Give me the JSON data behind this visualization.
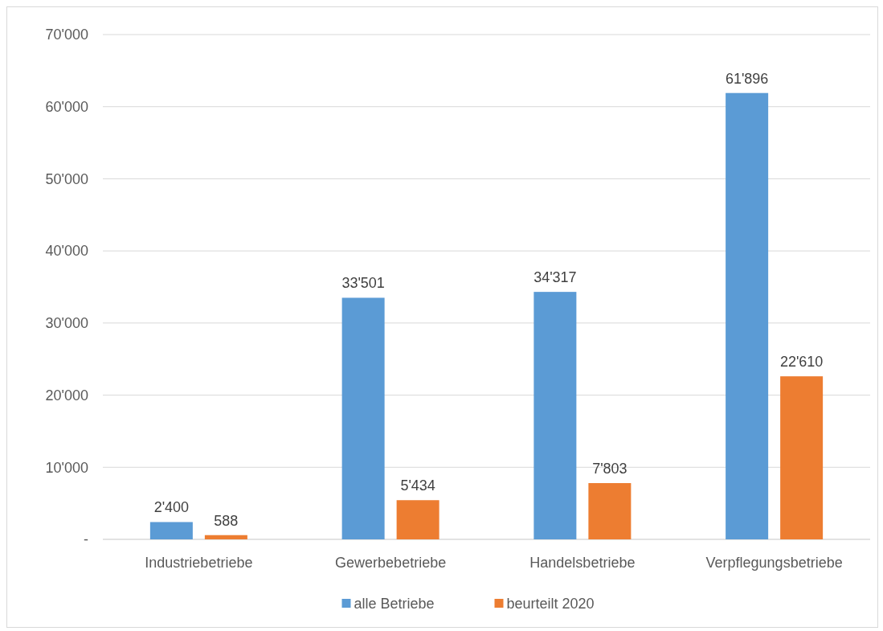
{
  "chart_data": {
    "type": "bar",
    "categories": [
      "Industriebetriebe",
      "Gewerbebetriebe",
      "Handelsbetriebe",
      "Verpflegungsbetriebe"
    ],
    "series": [
      {
        "name": "alle Betriebe",
        "color": "#5b9bd5",
        "values": [
          2400,
          33501,
          34317,
          61896
        ],
        "value_labels": [
          "2'400",
          "33'501",
          "34'317",
          "61'896"
        ]
      },
      {
        "name": "beurteilt 2020",
        "color": "#ed7d31",
        "values": [
          588,
          5434,
          7803,
          22610
        ],
        "value_labels": [
          "588",
          "5'434",
          "7'803",
          "22'610"
        ]
      }
    ],
    "ylim": [
      0,
      70000
    ],
    "yticks": [
      {
        "value": 0,
        "label": "-"
      },
      {
        "value": 10000,
        "label": "10'000"
      },
      {
        "value": 20000,
        "label": "20'000"
      },
      {
        "value": 30000,
        "label": "30'000"
      },
      {
        "value": 40000,
        "label": "40'000"
      },
      {
        "value": 50000,
        "label": "50'000"
      },
      {
        "value": 60000,
        "label": "60'000"
      },
      {
        "value": 70000,
        "label": "70'000"
      }
    ],
    "grid": "y",
    "legend": "bottom"
  }
}
